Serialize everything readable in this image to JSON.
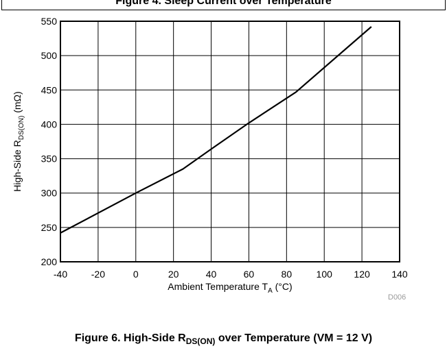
{
  "previous_caption": "Figure 4. Sleep Current over Temperature",
  "caption": {
    "prefix": "Figure 6. High-Side R",
    "subscript": "DS(ON)",
    "suffix": " over Temperature (VM = 12 V)"
  },
  "chart_id": "D006",
  "chart_data": {
    "type": "line",
    "xlabel": {
      "prefix": "Ambient Temperature T",
      "sub": "A",
      "suffix": " (°C)"
    },
    "ylabel": {
      "prefix": "High-Side R",
      "sub": "DS(ON)",
      "suffix": " (mΩ)"
    },
    "xlim": [
      -40,
      140
    ],
    "ylim": [
      200,
      550
    ],
    "xticks": [
      -40,
      -20,
      0,
      20,
      40,
      60,
      80,
      100,
      120,
      140
    ],
    "yticks": [
      200,
      250,
      300,
      350,
      400,
      450,
      500,
      550
    ],
    "grid": true,
    "line_color": "#000000",
    "series": [
      {
        "x": [
          -40,
          0,
          25,
          40,
          60,
          85,
          125
        ],
        "values": [
          242,
          300,
          335,
          364,
          402,
          447,
          542
        ]
      }
    ]
  }
}
